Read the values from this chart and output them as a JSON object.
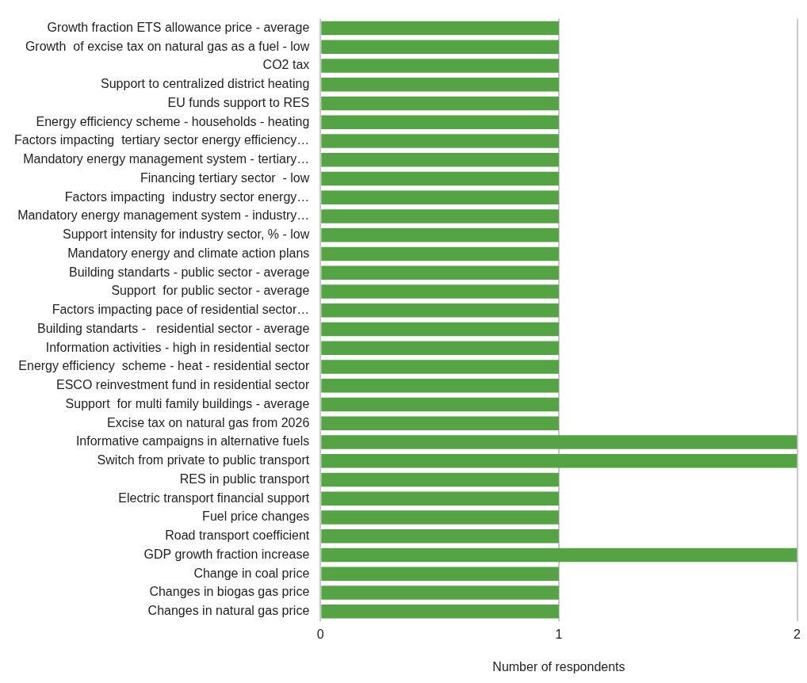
{
  "chart_data": {
    "type": "bar",
    "orientation": "horizontal",
    "xlabel": "Number of respondents",
    "categories": [
      "Growth fraction ETS allowance price - average",
      "Growth  of excise tax on natural gas as a fuel - low",
      "CO2 tax",
      "Support to centralized district heating",
      "EU funds support to RES",
      "Energy efficiency scheme - households - heating",
      "Factors impacting  tertiary sector energy efficiency…",
      "Mandatory energy management system - tertiary…",
      "Financing tertiary sector  - low",
      "Factors impacting  industry sector energy…",
      "Mandatory energy management system - industry…",
      "Support intensity for industry sector, % - low",
      "Mandatory energy and climate action plans",
      "Building standarts - public sector - average",
      "Support  for public sector - average",
      "Factors impacting pace of residential sector…",
      "Building standarts -   residential sector - average",
      "Information activities - high in residential sector",
      "Energy efficiency  scheme - heat - residential sector",
      "ESCO reinvestment fund in residential sector",
      "Support  for multi family buildings - average",
      "Excise tax on natural gas from 2026",
      "Informative campaigns in alternative fuels",
      "Switch from private to public transport",
      "RES in public transport",
      "Electric transport financial support",
      "Fuel price changes",
      "Road transport coefficient",
      "GDP growth fraction increase",
      "Change in coal price",
      "Changes in biogas gas price",
      "Changes in natural gas price"
    ],
    "values": [
      1,
      1,
      1,
      1,
      1,
      1,
      1,
      1,
      1,
      1,
      1,
      1,
      1,
      1,
      1,
      1,
      1,
      1,
      1,
      1,
      1,
      1,
      2,
      2,
      1,
      1,
      1,
      1,
      2,
      1,
      1,
      1
    ],
    "color": "#55a444",
    "xlim": [
      0,
      2
    ],
    "xticks": [
      0,
      1,
      2
    ],
    "grid": "x",
    "legend": false
  }
}
